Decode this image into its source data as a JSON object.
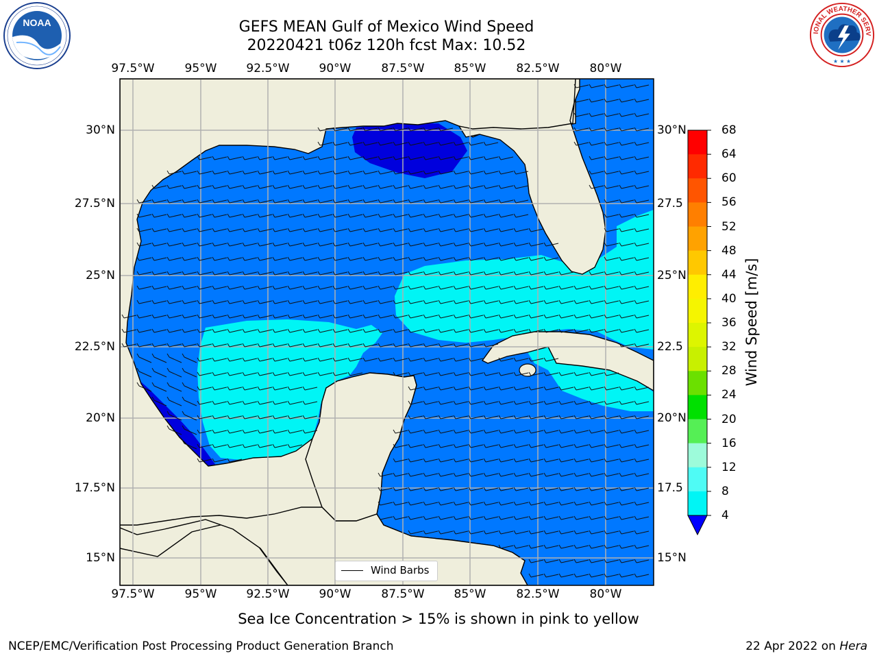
{
  "title": {
    "line1": "GEFS MEAN Gulf of Mexico Wind Speed",
    "line2": "20220421 t06z 120h fcst   Max: 10.52"
  },
  "logos": {
    "left": "noara-logo",
    "right": "nws-logo",
    "right_ring_text": "NATIONAL WEATHER SERVICE"
  },
  "map": {
    "lon_labels": [
      "97.5°W",
      "95°W",
      "92.5°W",
      "90°W",
      "87.5°W",
      "85°W",
      "82.5°W",
      "80°W"
    ],
    "lat_labels": [
      "30°N",
      "27.5°N",
      "25°N",
      "22.5°N",
      "20°N",
      "17.5°N",
      "15°N"
    ],
    "right_lat_labels": [
      "30°N",
      "27.5",
      "25°N",
      "22.5",
      "20°N",
      "17.5",
      "15°N"
    ],
    "land_color": "#efeedc",
    "grid_color": "#b0b0b0",
    "legend_label": "Wind Barbs"
  },
  "colorbar": {
    "title": "Wind Speed [m/s]",
    "ticks": [
      "68",
      "64",
      "60",
      "56",
      "52",
      "48",
      "44",
      "40",
      "36",
      "32",
      "28",
      "24",
      "20",
      "16",
      "12",
      "8",
      "4"
    ],
    "colors": [
      "#ff0000",
      "#ff2a00",
      "#ff5500",
      "#ff7f00",
      "#ffa200",
      "#ffc800",
      "#ffee00",
      "#f5f500",
      "#ddf500",
      "#c8f000",
      "#6be000",
      "#00e000",
      "#55ef55",
      "#9dfbda",
      "#4ffbf5",
      "#00f5f5",
      "#0078ff"
    ],
    "extend_color": "#0000ff"
  },
  "note": "Sea Ice Concentration > 15% is shown in pink to yellow",
  "footer": {
    "left": "NCEP/EMC/Verification Post Processing Product Generation Branch",
    "date": "22 Apr 2022 on ",
    "host": "Hera"
  }
}
